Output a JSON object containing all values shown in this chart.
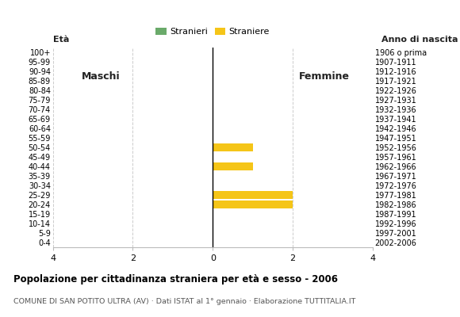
{
  "age_groups_top_to_bottom": [
    "100+",
    "95-99",
    "90-94",
    "85-89",
    "80-84",
    "75-79",
    "70-74",
    "65-69",
    "60-64",
    "55-59",
    "50-54",
    "45-49",
    "40-44",
    "35-39",
    "30-34",
    "25-29",
    "20-24",
    "15-19",
    "10-14",
    "5-9",
    "0-4"
  ],
  "birth_years_top_to_bottom": [
    "1906 o prima",
    "1907-1911",
    "1912-1916",
    "1917-1921",
    "1922-1926",
    "1927-1931",
    "1932-1936",
    "1937-1941",
    "1942-1946",
    "1947-1951",
    "1952-1956",
    "1957-1961",
    "1962-1966",
    "1967-1971",
    "1972-1976",
    "1977-1981",
    "1982-1986",
    "1987-1991",
    "1992-1996",
    "1997-2001",
    "2002-2006"
  ],
  "males_top_to_bottom": [
    0,
    0,
    0,
    0,
    0,
    0,
    0,
    0,
    0,
    0,
    0,
    0,
    0,
    0,
    0,
    0,
    0,
    0,
    0,
    0,
    0
  ],
  "females_top_to_bottom": [
    0,
    0,
    0,
    0,
    0,
    0,
    0,
    0,
    0,
    0,
    1,
    0,
    1,
    0,
    0,
    2,
    2,
    0,
    0,
    0,
    0
  ],
  "male_color": "#6aaa6a",
  "female_color": "#f5c518",
  "title": "Popolazione per cittadinanza straniera per età e sesso - 2006",
  "subtitle": "COMUNE DI SAN POTITO ULTRA (AV) · Dati ISTAT al 1° gennaio · Elaborazione TUTTITALIA.IT",
  "legend_male": "Stranieri",
  "legend_female": "Straniere",
  "xlim": 4,
  "label_eta": "Età",
  "label_anno": "Anno di nascita",
  "label_maschi": "Maschi",
  "label_femmine": "Femmine",
  "bg_color": "#ffffff",
  "grid_color": "#cccccc",
  "title_color": "#000000",
  "subtitle_color": "#555555"
}
